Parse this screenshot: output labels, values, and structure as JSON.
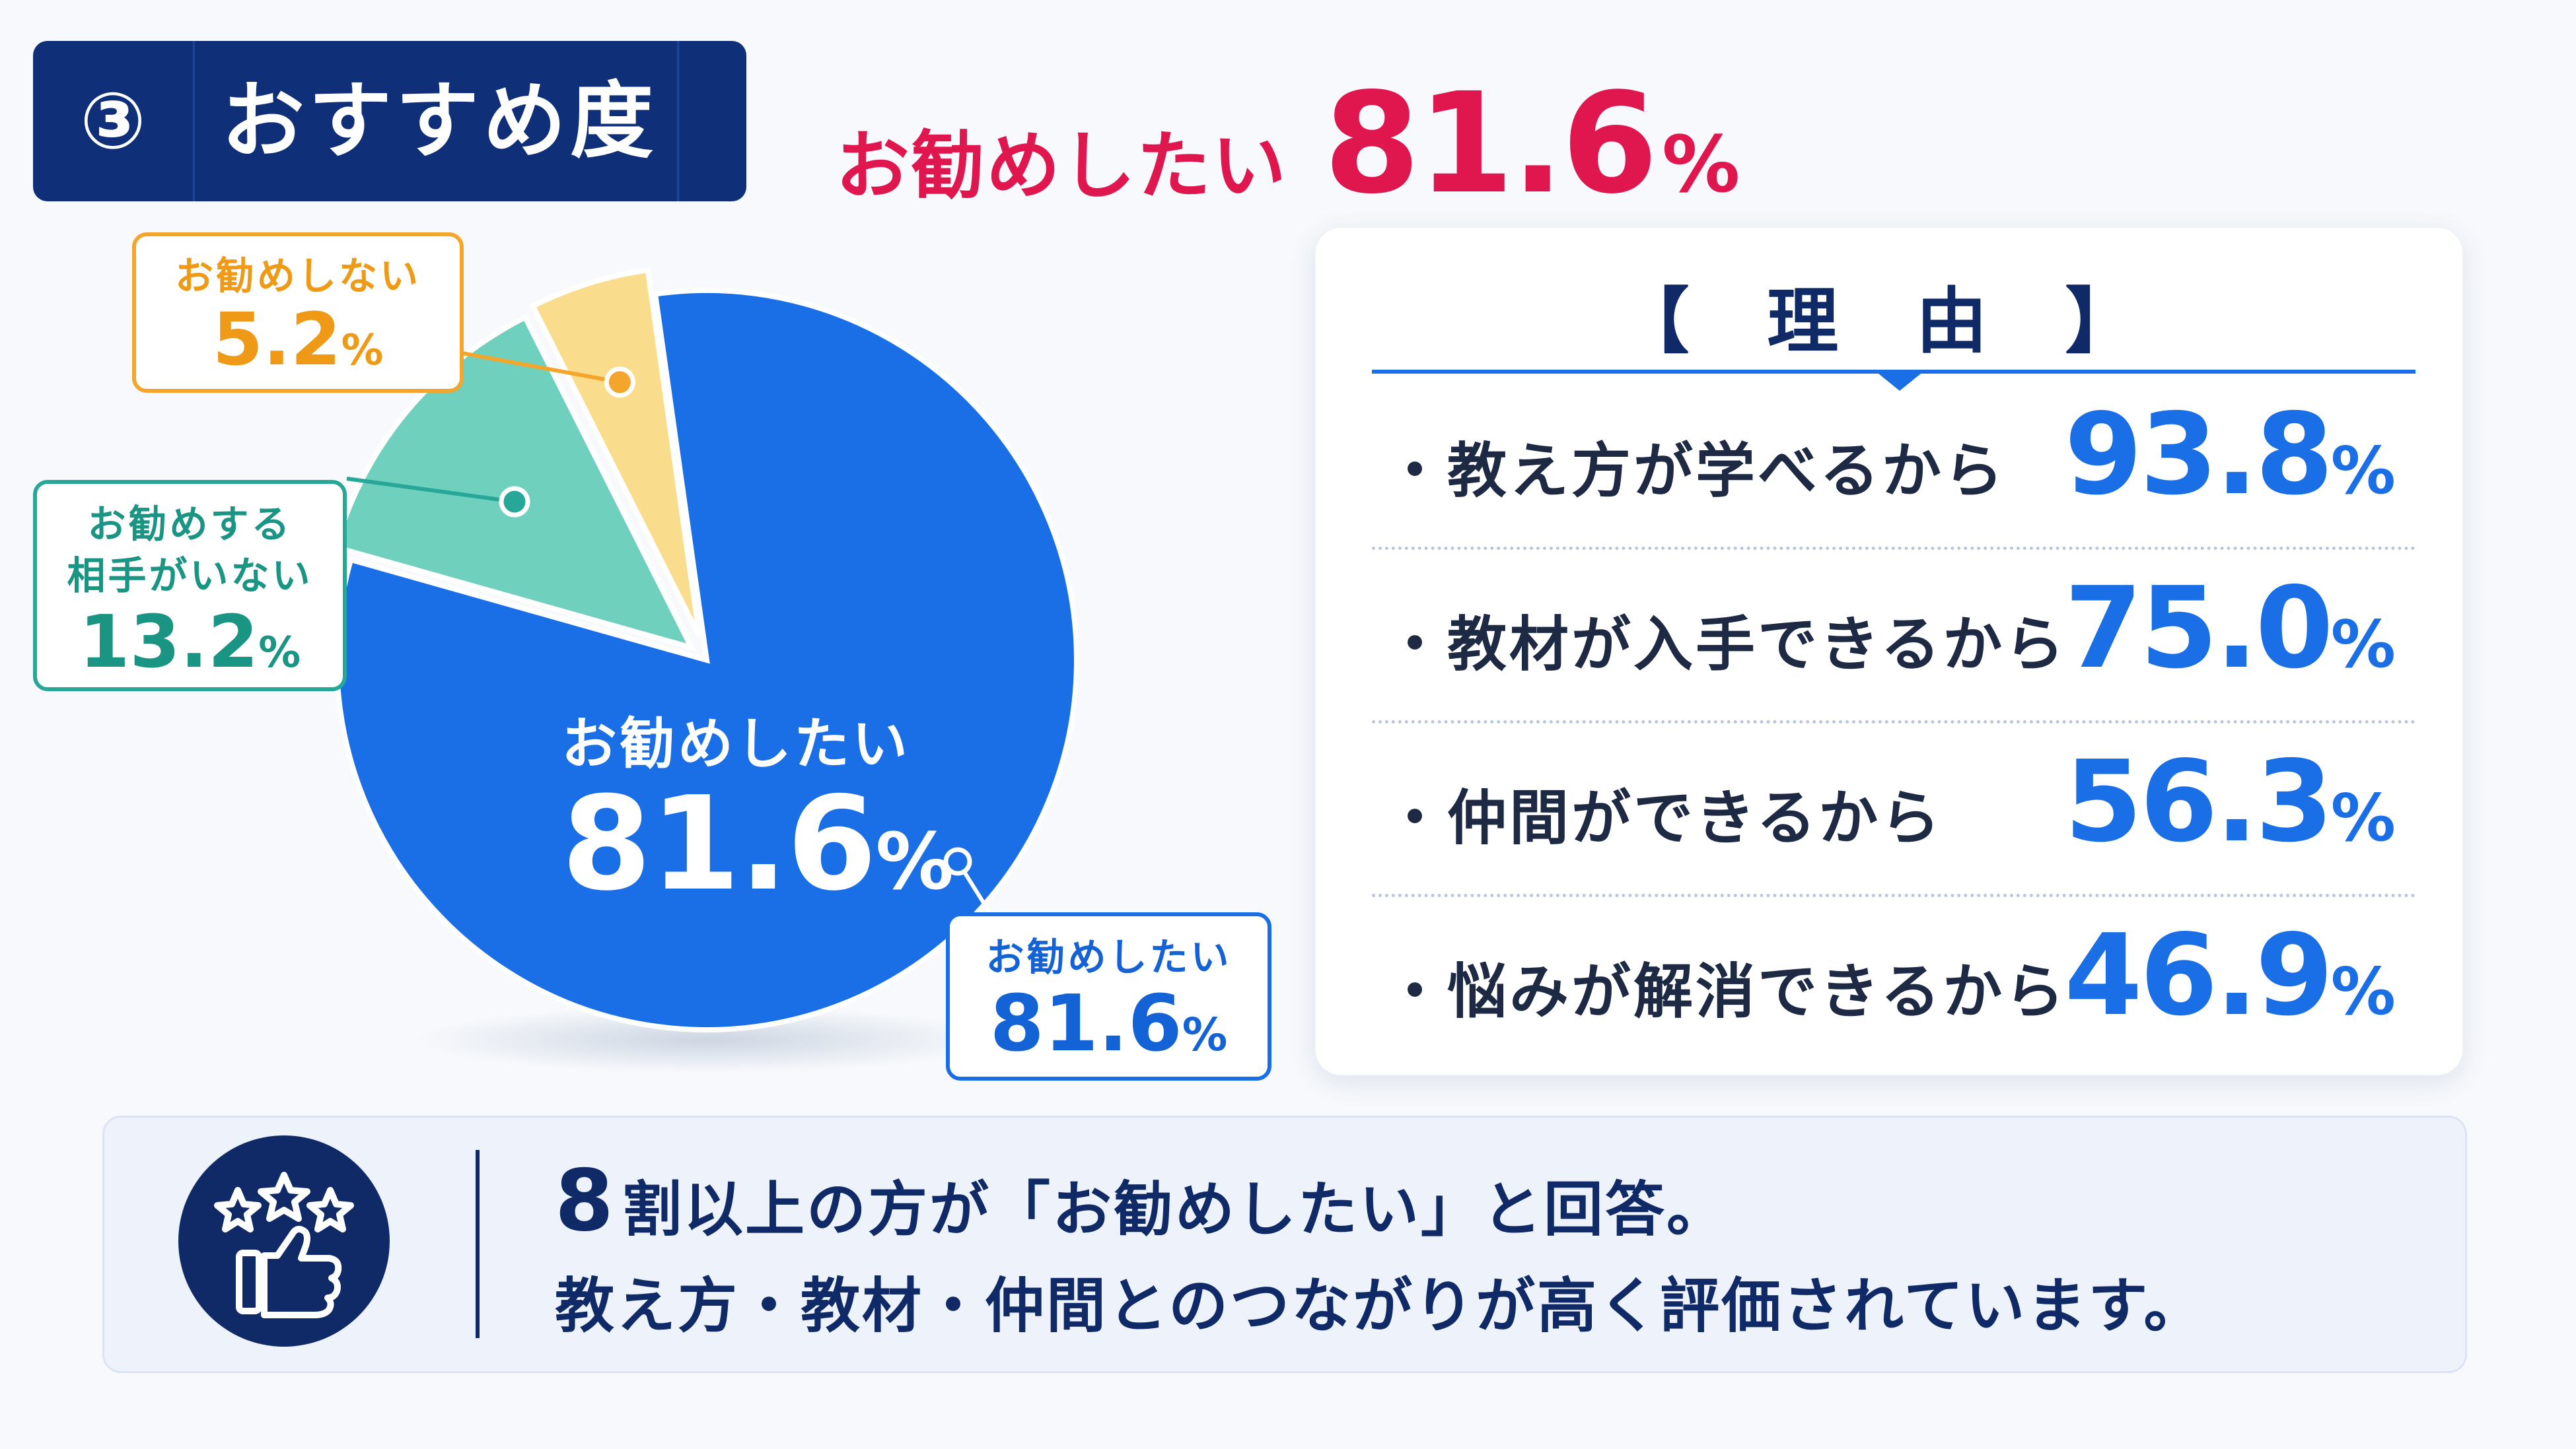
{
  "badge": {
    "number": "③",
    "title": "おすすめ度"
  },
  "headline": {
    "label": "お勧めしたい",
    "value": "81.6",
    "unit": "%"
  },
  "pie": {
    "center_label": "お勧めしたい",
    "center_value": "81.6",
    "center_unit": "%",
    "callouts": {
      "not_recommend": {
        "label": "お勧めしない",
        "value": "5.2",
        "unit": "%"
      },
      "no_partner": {
        "label_line1": "お勧めする",
        "label_line2": "相手がいない",
        "value": "13.2",
        "unit": "%"
      },
      "recommend": {
        "label": "お勧めしたい",
        "value": "81.6",
        "unit": "%"
      }
    }
  },
  "reasons": {
    "title": "【 理 由 】",
    "items": [
      {
        "label": "・教え方が学べるから",
        "value": "93.8",
        "unit": "%"
      },
      {
        "label": "・教材が入手できるから",
        "value": "75.0",
        "unit": "%"
      },
      {
        "label": "・仲間ができるから",
        "value": "56.3",
        "unit": "%"
      },
      {
        "label": "・悩みが解消できるから",
        "value": "46.9",
        "unit": "%"
      }
    ]
  },
  "summary": {
    "lead": "8",
    "line1": "割以上の方が「お勧めしたい」と回答。",
    "line2": "教え方・教材・仲間とのつながりが高く評価されています。",
    "icon": "thumbs-up-with-stars-icon"
  },
  "colors": {
    "navy": "#0f2a66",
    "accent_red": "#e0174e",
    "blue": "#1a6ee6",
    "teal": "#6fd0be",
    "yellow": "#f9dd8c"
  },
  "chart_data": [
    {
      "type": "pie",
      "categories": [
        "お勧めしたい",
        "お勧めする相手がいない",
        "お勧めしない"
      ],
      "values": [
        81.6,
        13.2,
        5.2
      ],
      "colors": [
        "#1a6ee6",
        "#6fd0be",
        "#f9dd8c"
      ]
    },
    {
      "type": "table",
      "title": "【 理 由 】",
      "categories": [
        "教え方が学べるから",
        "教材が入手できるから",
        "仲間ができるから",
        "悩みが解消できるから"
      ],
      "values": [
        93.8,
        75.0,
        56.3,
        46.9
      ]
    }
  ]
}
